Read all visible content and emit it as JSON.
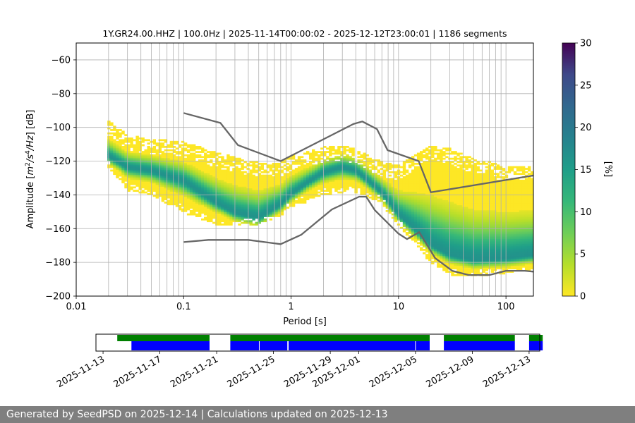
{
  "chart_data": [
    {
      "type": "heatmap",
      "title": "1Y.GR24.00.HHZ | 100.0Hz | 2025-11-14T00:00:02 - 2025-12-12T23:00:01 | 1186 segments",
      "xlabel": "Period [s]",
      "ylabel_parts": [
        "Amplitude [",
        "m",
        "2",
        "/",
        "s",
        "4",
        "/",
        "Hz",
        "] [dB]"
      ],
      "xscale": "log",
      "xlim": [
        0.01,
        180
      ],
      "ylim": [
        -200,
        -50
      ],
      "xticks": [
        0.01,
        0.1,
        1,
        10,
        100
      ],
      "xtick_labels": [
        "0.01",
        "0.1",
        "1",
        "10",
        "100"
      ],
      "yticks": [
        -200,
        -180,
        -160,
        -140,
        -120,
        -100,
        -80,
        -60
      ],
      "ytick_labels": [
        "−200",
        "−180",
        "−160",
        "−140",
        "−120",
        "−100",
        "−80",
        "−60"
      ],
      "grid": true,
      "x_gridlines": [
        0.02,
        0.03,
        0.04,
        0.05,
        0.06,
        0.07,
        0.08,
        0.09,
        0.1,
        0.2,
        0.3,
        0.4,
        0.5,
        0.6,
        0.7,
        0.8,
        0.9,
        1,
        2,
        3,
        4,
        5,
        6,
        7,
        8,
        9,
        10,
        20,
        30,
        40,
        50,
        60,
        70,
        80,
        90,
        100
      ],
      "period_range": [
        0.0195,
        180
      ],
      "psd_mode": {
        "period": [
          0.0195,
          0.03,
          0.05,
          0.1,
          0.2,
          0.3,
          0.5,
          0.8,
          1.0,
          1.5,
          2.0,
          3.0,
          4.0,
          5.0,
          7.0,
          10.0,
          15.0,
          20.0,
          30.0,
          50.0,
          100.0,
          180.0
        ],
        "db": [
          -117,
          -124,
          -126,
          -132,
          -145,
          -151,
          -154,
          -146,
          -140,
          -132,
          -127,
          -124,
          -126,
          -131,
          -139,
          -152,
          -162,
          -170,
          -176,
          -179,
          -178,
          -176
        ]
      },
      "psd_upper": {
        "period": [
          0.0195,
          0.03,
          0.05,
          0.1,
          0.2,
          0.3,
          0.5,
          0.8,
          1.0,
          2.0,
          3.0,
          4.0,
          5.0,
          7.0,
          10.0,
          15.0,
          20.0,
          30.0,
          50.0,
          100.0,
          180.0
        ],
        "db": [
          -97,
          -106,
          -108,
          -110,
          -116,
          -119,
          -122,
          -122,
          -118,
          -113,
          -112,
          -114,
          -117,
          -122,
          -124,
          -117,
          -112,
          -114,
          -120,
          -124,
          -124
        ]
      },
      "psd_lower": {
        "period": [
          0.0195,
          0.03,
          0.05,
          0.1,
          0.2,
          0.3,
          0.5,
          0.8,
          1.0,
          2.0,
          3.0,
          4.0,
          5.0,
          7.0,
          10.0,
          15.0,
          20.0,
          30.0,
          50.0,
          100.0,
          180.0
        ],
        "db": [
          -123,
          -137,
          -140,
          -150,
          -157,
          -158,
          -157,
          -152,
          -147,
          -140,
          -138,
          -138,
          -140,
          -145,
          -158,
          -170,
          -180,
          -187,
          -188,
          -186,
          -186
        ]
      },
      "noise_models": [
        {
          "period": [
            0.1,
            0.22,
            0.32,
            0.8,
            3.8,
            4.6,
            6.3,
            7.9,
            15.4,
            20.0,
            180.0
          ],
          "db": [
            -91.5,
            -97.4,
            -110.5,
            -120.0,
            -98.0,
            -96.5,
            -101.0,
            -113.5,
            -120.0,
            -138.5,
            -128.5
          ]
        },
        {
          "period": [
            0.1,
            0.17,
            0.4,
            0.8,
            1.24,
            2.4,
            4.3,
            5.0,
            6.0,
            10.0,
            12.0,
            15.6,
            21.9,
            31.6,
            45.0,
            70.0,
            100.0,
            150.0,
            180.0
          ],
          "db": [
            -168.0,
            -166.7,
            -166.7,
            -169.2,
            -163.7,
            -148.6,
            -141.1,
            -141.1,
            -149.0,
            -163.0,
            -166.2,
            -162.1,
            -177.5,
            -185.0,
            -187.5,
            -187.5,
            -185.0,
            -185.0,
            -185.5
          ]
        }
      ],
      "noise_model_color": "#666666",
      "colorbar": {
        "label": "[%]",
        "min": 0,
        "max": 30,
        "ticks": [
          0,
          5,
          10,
          15,
          20,
          25,
          30
        ],
        "colormap": "viridis_r"
      }
    },
    {
      "type": "availability",
      "xrange": [
        "2025-11-12T12:00",
        "2025-12-13T18:00"
      ],
      "xticks": [
        "2025-11-13",
        "2025-11-17",
        "2025-11-21",
        "2025-11-25",
        "2025-11-29",
        "2025-12-01",
        "2025-12-05",
        "2025-12-09",
        "2025-12-13"
      ],
      "data_color": "#008000",
      "psd_color": "#0000ff",
      "data_segments": [
        [
          "2025-11-14T00:00",
          "2025-11-20T12:00"
        ],
        [
          "2025-11-21T23:00",
          "2025-12-06T00:00"
        ],
        [
          "2025-12-07T00:00",
          "2025-12-12T00:00"
        ],
        [
          "2025-12-13T00:00",
          "2025-12-13T23:00"
        ]
      ],
      "psd_segments": [
        [
          "2025-11-15T00:00",
          "2025-11-20T12:00"
        ],
        [
          "2025-11-21T23:00",
          "2025-12-06T00:00"
        ],
        [
          "2025-12-07T00:00",
          "2025-12-12T00:00"
        ],
        [
          "2025-12-13T00:00",
          "2025-12-13T23:00"
        ]
      ],
      "psd_gap_markers": [
        "2025-11-24T00:00",
        "2025-11-26T00:00",
        "2025-11-26T01:00",
        "2025-12-05T00:00"
      ]
    }
  ],
  "footer": "Generated by SeedPSD on 2025-12-14 | Calculations updated on 2025-12-13"
}
